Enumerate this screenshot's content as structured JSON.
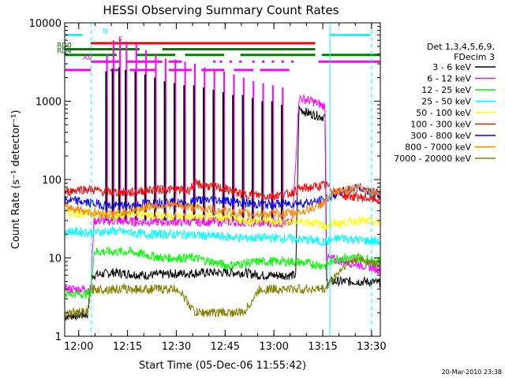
{
  "chart_data": {
    "type": "line",
    "title": "HESSI Observing Summary Count Rates",
    "xlabel": "Start Time (05-Dec-06 11:55:42)",
    "ylabel": "Count Rate (s⁻¹ detector⁻¹)",
    "ylog": true,
    "xlim": [
      0,
      97
    ],
    "ylim": [
      1,
      10000
    ],
    "xunit": "minutes after 11:55:42",
    "x_ticks": [
      {
        "label": "12:00",
        "x": 4.3
      },
      {
        "label": "12:15",
        "x": 19.3
      },
      {
        "label": "12:30",
        "x": 34.3
      },
      {
        "label": "12:45",
        "x": 49.3
      },
      {
        "label": "13:00",
        "x": 64.3
      },
      {
        "label": "13:15",
        "x": 79.3
      },
      {
        "label": "13:30",
        "x": 94.3
      }
    ],
    "y_ticks": [
      {
        "label": "1",
        "y": 1
      },
      {
        "label": "10",
        "y": 10
      },
      {
        "label": "100",
        "y": 100
      },
      {
        "label": "1000",
        "y": 1000
      },
      {
        "label": "10000",
        "y": 10000
      }
    ],
    "legend_title": [
      "Det 1,3,4,5,6,9,",
      "FDecim 3"
    ],
    "legend_position": "right",
    "series": [
      {
        "name": "3 - 6 keV",
        "color": "#000000",
        "points": [
          [
            0,
            1.8
          ],
          [
            7,
            1.9
          ],
          [
            8.5,
            6
          ],
          [
            15,
            6.5
          ],
          [
            25,
            6
          ],
          [
            35,
            6.3
          ],
          [
            45,
            6.5
          ],
          [
            55,
            6.5
          ],
          [
            60,
            6
          ],
          [
            71,
            6
          ],
          [
            72,
            800
          ],
          [
            75,
            700
          ],
          [
            80,
            620
          ],
          [
            80.5,
            5
          ],
          [
            86,
            5
          ],
          [
            92,
            5
          ],
          [
            97,
            4.8
          ]
        ]
      },
      {
        "name": "6 - 12 keV",
        "color": "#ff00ff",
        "points": [
          [
            0,
            4
          ],
          [
            8,
            4
          ],
          [
            9,
            30
          ],
          [
            20,
            29
          ],
          [
            30,
            29
          ],
          [
            40,
            29
          ],
          [
            50,
            29
          ],
          [
            60,
            28
          ],
          [
            70,
            28
          ],
          [
            72,
            1100
          ],
          [
            76,
            1000
          ],
          [
            80,
            850
          ],
          [
            80.5,
            10
          ],
          [
            86,
            9
          ],
          [
            92,
            8
          ],
          [
            97,
            7
          ]
        ]
      },
      {
        "name": "12 - 25 keV",
        "color": "#00ff00",
        "points": [
          [
            0,
            3.5
          ],
          [
            8,
            3.5
          ],
          [
            9,
            12
          ],
          [
            20,
            12
          ],
          [
            30,
            10
          ],
          [
            40,
            10
          ],
          [
            50,
            8
          ],
          [
            60,
            9
          ],
          [
            70,
            9
          ],
          [
            80,
            8
          ],
          [
            84,
            10
          ],
          [
            90,
            10
          ],
          [
            97,
            9
          ]
        ]
      },
      {
        "name": "25 - 50 keV",
        "color": "#00ffff",
        "points": [
          [
            0,
            22
          ],
          [
            8,
            21
          ],
          [
            15,
            22
          ],
          [
            25,
            20
          ],
          [
            35,
            20
          ],
          [
            45,
            19
          ],
          [
            55,
            18
          ],
          [
            65,
            18
          ],
          [
            75,
            17
          ],
          [
            80,
            16
          ],
          [
            85,
            18
          ],
          [
            90,
            17
          ],
          [
            97,
            16
          ]
        ]
      },
      {
        "name": "50 - 100 keV",
        "color": "#ffff00",
        "points": [
          [
            0,
            38
          ],
          [
            8,
            37
          ],
          [
            15,
            35
          ],
          [
            25,
            36
          ],
          [
            35,
            34
          ],
          [
            45,
            33
          ],
          [
            55,
            30
          ],
          [
            65,
            29
          ],
          [
            75,
            29
          ],
          [
            80,
            26
          ],
          [
            85,
            28
          ],
          [
            90,
            30
          ],
          [
            97,
            28
          ]
        ]
      },
      {
        "name": "100 - 300 keV",
        "color": "#ff0000",
        "points": [
          [
            0,
            68
          ],
          [
            4,
            75
          ],
          [
            8,
            75
          ],
          [
            12,
            70
          ],
          [
            20,
            68
          ],
          [
            26,
            74
          ],
          [
            30,
            75
          ],
          [
            38,
            73
          ],
          [
            40,
            88
          ],
          [
            48,
            78
          ],
          [
            55,
            65
          ],
          [
            62,
            62
          ],
          [
            68,
            64
          ],
          [
            72,
            75
          ],
          [
            80,
            85
          ],
          [
            86,
            62
          ],
          [
            90,
            60
          ],
          [
            97,
            55
          ]
        ]
      },
      {
        "name": "300 - 800 keV",
        "color": "#0000ff",
        "points": [
          [
            0,
            55
          ],
          [
            4,
            53
          ],
          [
            8,
            50
          ],
          [
            14,
            46
          ],
          [
            20,
            46
          ],
          [
            26,
            50
          ],
          [
            32,
            52
          ],
          [
            38,
            48
          ],
          [
            40,
            55
          ],
          [
            48,
            55
          ],
          [
            55,
            50
          ],
          [
            62,
            48
          ],
          [
            68,
            49
          ],
          [
            72,
            50
          ],
          [
            78,
            52
          ],
          [
            84,
            67
          ],
          [
            90,
            80
          ],
          [
            97,
            65
          ]
        ]
      },
      {
        "name": "800 - 7000 keV",
        "color": "#ff8800",
        "points": [
          [
            0,
            45
          ],
          [
            4,
            42
          ],
          [
            8,
            38
          ],
          [
            14,
            36
          ],
          [
            20,
            40
          ],
          [
            26,
            46
          ],
          [
            32,
            48
          ],
          [
            38,
            45
          ],
          [
            40,
            44
          ],
          [
            48,
            40
          ],
          [
            55,
            37
          ],
          [
            62,
            36
          ],
          [
            68,
            37
          ],
          [
            72,
            38
          ],
          [
            78,
            46
          ],
          [
            84,
            70
          ],
          [
            90,
            80
          ],
          [
            97,
            68
          ]
        ]
      },
      {
        "name": "7000 - 20000 keV",
        "color": "#808000",
        "points": [
          [
            0,
            2
          ],
          [
            7,
            2
          ],
          [
            8,
            4
          ],
          [
            15,
            4
          ],
          [
            25,
            4
          ],
          [
            35,
            4
          ],
          [
            40,
            2
          ],
          [
            45,
            2
          ],
          [
            55,
            2
          ],
          [
            60,
            4
          ],
          [
            70,
            4
          ],
          [
            80,
            4
          ],
          [
            86,
            8
          ],
          [
            90,
            10
          ],
          [
            97,
            8
          ]
        ]
      }
    ],
    "spikes_6_12_keV": [
      13,
      15,
      17,
      19,
      22,
      25,
      28,
      31,
      34,
      37,
      40,
      43,
      46,
      49,
      52,
      55,
      58,
      61,
      64,
      67
    ],
    "spike_heights_6_12_keV": [
      4000,
      6000,
      6200,
      5800,
      5500,
      4500,
      4000,
      3500,
      3400,
      3200,
      3000,
      2700,
      2600,
      2400,
      2200,
      2000,
      1800,
      1700,
      1600,
      1500
    ],
    "spikes_3_6_keV": [
      13,
      15,
      17,
      19,
      22,
      25,
      28,
      31,
      34,
      37,
      40,
      43,
      46,
      49,
      52,
      55,
      58,
      61,
      64,
      67
    ],
    "spike_heights_3_6_keV": [
      2400,
      2600,
      2700,
      2500,
      2400,
      2200,
      2000,
      1800,
      1700,
      1600,
      1600,
      1500,
      1400,
      1300,
      1200,
      1200,
      1100,
      1000,
      1000,
      900
    ],
    "spikes_12_25_keV": [
      13,
      15,
      17,
      19,
      22,
      25,
      28,
      31,
      34,
      37,
      40,
      43,
      46,
      49,
      52,
      55,
      58,
      61,
      64,
      67
    ],
    "spike_heights_12_25_keV": [
      1000,
      1200,
      1400,
      1500,
      1400,
      1300,
      1100,
      1000,
      900,
      800,
      700,
      650,
      600,
      550,
      500,
      450,
      400,
      380,
      350,
      320
    ],
    "flags": [
      {
        "label": "N",
        "color": "#00ffff",
        "y": 7000,
        "segments": [
          [
            0,
            5.5
          ],
          [
            81.5,
            94
          ]
        ]
      },
      {
        "label": "F",
        "color": "#ff0000",
        "y": 5500,
        "segments": [
          [
            8,
            77
          ]
        ]
      },
      {
        "label": "RD0",
        "color": "#008000",
        "y": 4600,
        "segments": [
          [
            0,
            23
          ],
          [
            30,
            77
          ]
        ]
      },
      {
        "label": "RD4",
        "color": "#008000",
        "y": 3900,
        "segments": [
          [
            0,
            16
          ],
          [
            22,
            34
          ],
          [
            37,
            49
          ],
          [
            54,
            77
          ],
          [
            79,
            97
          ]
        ]
      },
      {
        "label": "A0",
        "color": "#ff00ff",
        "y": 3200,
        "segments": [
          [
            8,
            17
          ],
          [
            19,
            30
          ],
          [
            32,
            36
          ],
          [
            78,
            97
          ]
        ]
      },
      {
        "label": "",
        "color": "#ff00ff",
        "y": 2500,
        "segments": [
          [
            0,
            8
          ],
          [
            14,
            17
          ],
          [
            20,
            28
          ],
          [
            32,
            39
          ],
          [
            42,
            49
          ],
          [
            52,
            58
          ],
          [
            60,
            69
          ]
        ]
      }
    ],
    "flag_dots": {
      "color": "#ff00ff",
      "y": 3200,
      "x": [
        46,
        48,
        51,
        54,
        58,
        61,
        64,
        67,
        70
      ]
    },
    "cyan_vlines": [
      {
        "x": 8.2,
        "style": "dashed"
      },
      {
        "x": 81.5,
        "style": "solid"
      },
      {
        "x": 94.3,
        "style": "dashed"
      }
    ],
    "timestamp": "20-Mar-2010 23:38"
  }
}
